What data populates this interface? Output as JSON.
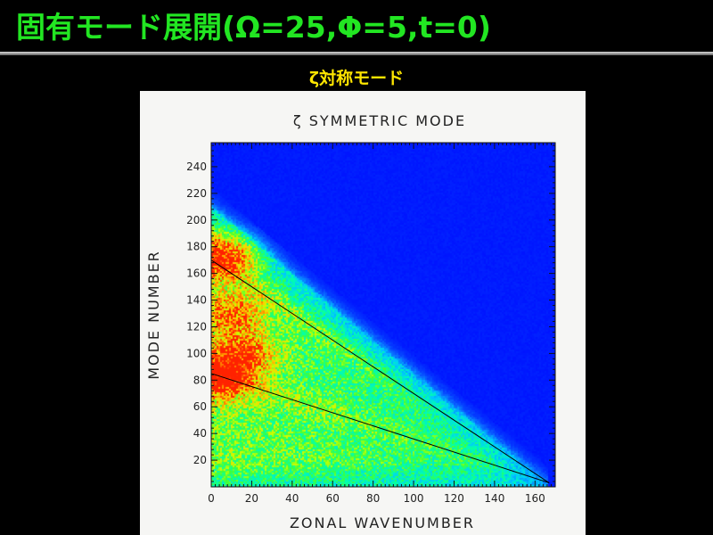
{
  "slide": {
    "title": "固有モード展開(Ω=25,Φ=5,t=0)",
    "subtitle": "ζ対称モード",
    "title_color": "#22e622",
    "subtitle_color": "#ffe600",
    "background": "#000000"
  },
  "chart_data": {
    "type": "heatmap",
    "title": "ζ SYMMETRIC MODE",
    "xlabel": "ZONAL WAVENUMBER",
    "ylabel": "MODE NUMBER",
    "xlim": [
      0,
      170
    ],
    "ylim": [
      0,
      258
    ],
    "xticks": [
      0,
      20,
      40,
      60,
      80,
      100,
      120,
      140,
      160
    ],
    "yticks": [
      20,
      40,
      60,
      80,
      100,
      120,
      140,
      160,
      180,
      200,
      220,
      240
    ],
    "colormap": [
      "#0014ff",
      "#0a6cff",
      "#00c8ff",
      "#00ffb0",
      "#3cff3c",
      "#c8ff00",
      "#ffd000",
      "#ff7a00",
      "#ff2200"
    ],
    "background_color": "#0014ff",
    "energy_wedge_edge": [
      [
        0,
        210
      ],
      [
        167,
        0
      ]
    ],
    "lines": [
      {
        "points": [
          [
            0,
            170
          ],
          [
            167,
            3
          ]
        ]
      },
      {
        "points": [
          [
            0,
            85
          ],
          [
            167,
            3
          ]
        ]
      }
    ],
    "hotspots": [
      {
        "x": 5,
        "y": 172,
        "level": 0.95
      },
      {
        "x": 4,
        "y": 82,
        "level": 1.0
      },
      {
        "x": 15,
        "y": 100,
        "level": 0.72
      },
      {
        "x": 10,
        "y": 130,
        "level": 0.62
      }
    ],
    "grid": false
  }
}
